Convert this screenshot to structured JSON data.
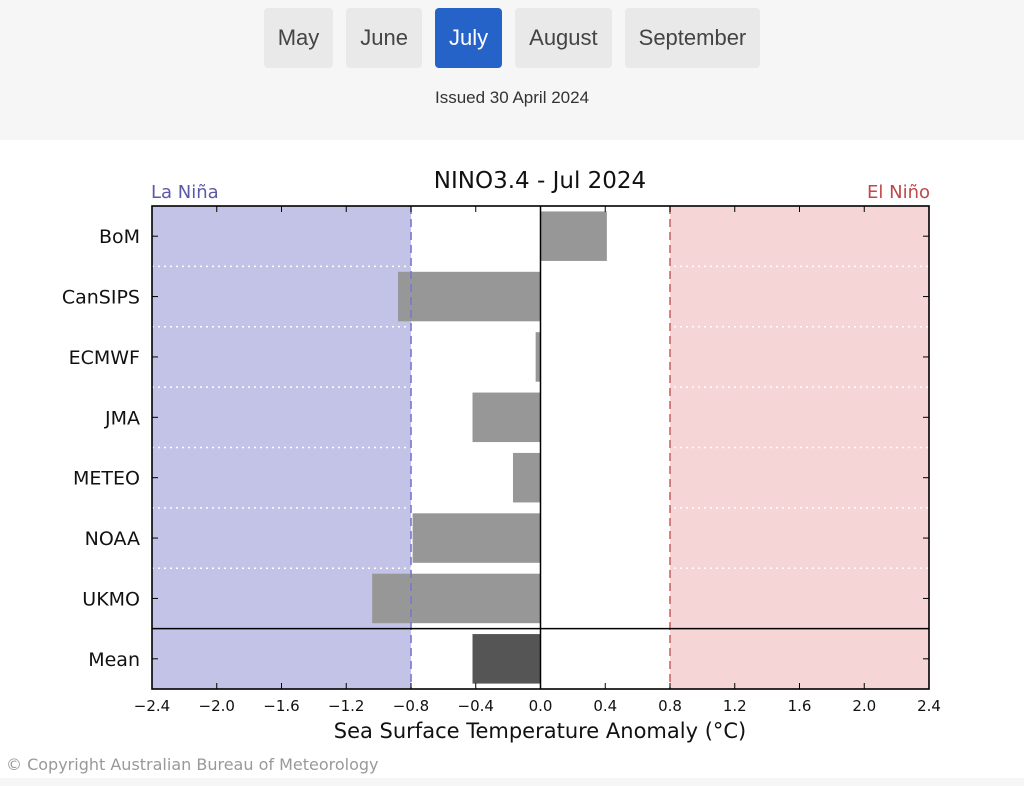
{
  "months": {
    "tabs": [
      {
        "label": "May",
        "active": false
      },
      {
        "label": "June",
        "active": false
      },
      {
        "label": "July",
        "active": true
      },
      {
        "label": "August",
        "active": false
      },
      {
        "label": "September",
        "active": false
      }
    ],
    "issued": "Issued 30 April 2024"
  },
  "chart_data": {
    "type": "bar",
    "orientation": "horizontal",
    "title": "NINO3.4 - Jul 2024",
    "xlabel": "Sea Surface Temperature Anomaly (°C)",
    "ylabel": "",
    "xlim": [
      -2.4,
      2.4
    ],
    "xticks": [
      -2.4,
      -2.0,
      -1.6,
      -1.2,
      -0.8,
      -0.4,
      0.0,
      0.4,
      0.8,
      1.2,
      1.6,
      2.0,
      2.4
    ],
    "xtick_labels": [
      "−2.4",
      "−2.0",
      "−1.6",
      "−1.2",
      "−0.8",
      "−0.4",
      "0.0",
      "0.4",
      "0.8",
      "1.2",
      "1.6",
      "2.0",
      "2.4"
    ],
    "categories": [
      "BoM",
      "CanSIPS",
      "ECMWF",
      "JMA",
      "METEO",
      "NOAA",
      "UKMO",
      "Mean"
    ],
    "values": [
      0.41,
      -0.88,
      -0.03,
      -0.42,
      -0.17,
      -0.79,
      -1.04,
      -0.42
    ],
    "thresholds": {
      "la_nina": -0.8,
      "el_nino": 0.8
    },
    "region_labels": {
      "la_nina": "La Niña",
      "el_nino": "El Niño"
    },
    "colors": {
      "la_nina_fill": "#c3c3e8",
      "el_nino_fill": "#f5d5d5",
      "la_nina_text": "#5a5aa8",
      "el_nino_text": "#c04848",
      "la_nina_line": "#7777cc",
      "el_nino_line": "#cc6666",
      "bar": "#979797",
      "mean_bar": "#555555"
    }
  },
  "copyright": "© Copyright Australian Bureau of Meteorology"
}
